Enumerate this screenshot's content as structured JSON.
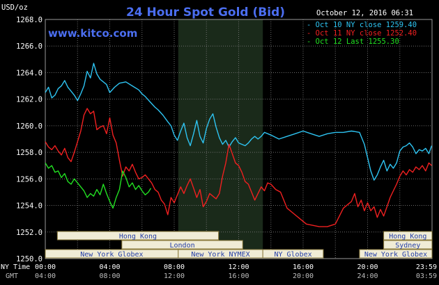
{
  "header": {
    "unit_label": "USD/oz",
    "title": "24 Hour Spot Gold (Bid)",
    "timestamp": "October 12, 2016 06:31",
    "site": "www.kitco.com"
  },
  "footer": {
    "ny_time_label": "NY Time",
    "gmt_label": "GMT"
  },
  "colors": {
    "background": "#000000",
    "grid": "#6e6e6e",
    "title": "#4b6ef0",
    "series_oct10": "#2ec4f2",
    "series_oct11": "#f02020",
    "series_oct12": "#22e022",
    "session_fill": "#f0ecd6",
    "session_border": "#8a7a3c",
    "highlight_band": "#1a2a1a"
  },
  "sessions": [
    {
      "label": "Hong Kong",
      "row": 1,
      "from": 0.75,
      "to": 10.75
    },
    {
      "label": "Hong Kong",
      "row": 1,
      "from": 21.0,
      "to": 24.0
    },
    {
      "label": "London",
      "row": 2,
      "from": 4.75,
      "to": 12.25
    },
    {
      "label": "Sydney",
      "row": 2,
      "from": 21.0,
      "to": 24.0
    },
    {
      "label": "New York Globex",
      "row": 3,
      "from": 0.0,
      "to": 8.25
    },
    {
      "label": "New York NYMEX",
      "row": 3,
      "from": 8.25,
      "to": 13.5
    },
    {
      "label": "NY Globex",
      "row": 3,
      "from": 13.5,
      "to": 17.25
    },
    {
      "label": "New York Globex",
      "row": 3,
      "from": 19.5,
      "to": 24.0
    }
  ],
  "chart_data": {
    "type": "line",
    "title": "24 Hour Spot Gold (Bid)",
    "ylabel": "USD/oz",
    "ylim": [
      1250.0,
      1268.0
    ],
    "xlim": [
      0,
      24
    ],
    "yticks": [
      "1268.0",
      "1266.0",
      "1264.0",
      "1262.0",
      "1260.0",
      "1258.0",
      "1256.0",
      "1254.0",
      "1252.0",
      "1250.0"
    ],
    "ny_ticks": [
      "00:00",
      "04:00",
      "08:00",
      "12:00",
      "16:00",
      "20:00",
      "23:59"
    ],
    "gmt_ticks": [
      "04:00",
      "08:00",
      "12:00",
      "16:00",
      "20:00",
      "24:00",
      "03:59"
    ],
    "highlight_range": [
      8.25,
      13.5
    ],
    "legend_position": "top-right",
    "series": [
      {
        "name": "Oct 10 NY close 1259.40",
        "color": "#2ec4f2",
        "x": [
          0,
          0.2,
          0.4,
          0.6,
          0.8,
          1.0,
          1.2,
          1.4,
          1.6,
          1.8,
          2.0,
          2.2,
          2.4,
          2.6,
          2.8,
          3.0,
          3.2,
          3.4,
          3.6,
          3.8,
          4.0,
          4.3,
          4.6,
          5.0,
          5.4,
          5.8,
          6.0,
          6.2,
          6.5,
          6.8,
          7.0,
          7.3,
          7.6,
          7.8,
          8.0,
          8.2,
          8.4,
          8.6,
          8.8,
          9.0,
          9.2,
          9.4,
          9.6,
          9.8,
          10.0,
          10.2,
          10.4,
          10.6,
          10.8,
          11.0,
          11.2,
          11.4,
          11.6,
          11.8,
          12.0,
          12.2,
          12.4,
          12.6,
          12.8,
          13.0,
          13.2,
          13.4,
          13.6,
          14.0,
          14.5,
          15.0,
          15.5,
          16.0,
          16.5,
          17.0,
          17.5,
          18.0,
          18.5,
          19.0,
          19.5,
          19.8,
          20.0,
          20.2,
          20.4,
          20.6,
          20.8,
          21.0,
          21.2,
          21.4,
          21.6,
          21.8,
          22.0,
          22.2,
          22.4,
          22.6,
          22.8,
          23.0,
          23.2,
          23.4,
          23.6,
          23.8,
          23.98
        ],
        "y": [
          1262.5,
          1262.9,
          1262.1,
          1262.3,
          1262.8,
          1263.0,
          1263.4,
          1262.9,
          1262.6,
          1262.3,
          1261.9,
          1262.4,
          1263.0,
          1264.1,
          1263.6,
          1264.7,
          1263.9,
          1263.5,
          1263.3,
          1263.1,
          1262.5,
          1262.9,
          1263.2,
          1263.3,
          1263.0,
          1262.7,
          1262.4,
          1262.2,
          1261.8,
          1261.4,
          1261.2,
          1260.8,
          1260.3,
          1260.0,
          1259.3,
          1258.9,
          1259.6,
          1260.2,
          1259.1,
          1258.5,
          1259.4,
          1260.4,
          1259.2,
          1258.7,
          1259.8,
          1260.5,
          1260.9,
          1259.9,
          1259.1,
          1258.6,
          1258.9,
          1258.4,
          1258.8,
          1259.1,
          1258.7,
          1258.6,
          1258.5,
          1258.7,
          1259.0,
          1259.2,
          1259.0,
          1259.2,
          1259.5,
          1259.3,
          1259.0,
          1259.2,
          1259.4,
          1259.6,
          1259.4,
          1259.2,
          1259.4,
          1259.5,
          1259.5,
          1259.6,
          1259.5,
          1258.6,
          1257.6,
          1256.6,
          1255.9,
          1256.3,
          1256.9,
          1257.4,
          1256.6,
          1257.1,
          1256.8,
          1257.2,
          1258.1,
          1258.4,
          1258.5,
          1258.7,
          1258.4,
          1257.9,
          1258.2,
          1258.1,
          1258.3,
          1257.9,
          1258.5
        ]
      },
      {
        "name": "Oct 11 NY close 1252.40",
        "color": "#f02020",
        "x": [
          0,
          0.2,
          0.4,
          0.6,
          0.8,
          1.0,
          1.2,
          1.4,
          1.6,
          1.8,
          2.0,
          2.2,
          2.4,
          2.6,
          2.8,
          3.0,
          3.2,
          3.4,
          3.6,
          3.8,
          4.0,
          4.2,
          4.4,
          4.6,
          4.8,
          5.0,
          5.2,
          5.4,
          5.6,
          5.8,
          6.0,
          6.2,
          6.4,
          6.6,
          6.8,
          7.0,
          7.2,
          7.4,
          7.6,
          7.8,
          8.0,
          8.2,
          8.4,
          8.6,
          8.8,
          9.0,
          9.2,
          9.4,
          9.6,
          9.8,
          10.0,
          10.2,
          10.4,
          10.6,
          10.8,
          11.0,
          11.2,
          11.4,
          11.6,
          11.8,
          12.0,
          12.2,
          12.4,
          12.6,
          12.8,
          13.0,
          13.2,
          13.4,
          13.6,
          13.8,
          14.0,
          14.3,
          14.6,
          15.0,
          15.4,
          15.8,
          16.2,
          16.6,
          17.0,
          17.5,
          18.0,
          18.5,
          19.0,
          19.2,
          19.4,
          19.6,
          19.8,
          20.0,
          20.2,
          20.4,
          20.6,
          20.8,
          21.0,
          21.2,
          21.4,
          21.6,
          21.8,
          22.0,
          22.2,
          22.4,
          22.6,
          22.8,
          23.0,
          23.2,
          23.4,
          23.6,
          23.8,
          23.98
        ],
        "y": [
          1258.8,
          1258.4,
          1258.2,
          1258.5,
          1258.1,
          1257.8,
          1258.3,
          1257.6,
          1257.3,
          1258.0,
          1258.8,
          1259.6,
          1260.8,
          1261.3,
          1260.9,
          1261.1,
          1259.7,
          1259.9,
          1260.0,
          1259.4,
          1260.6,
          1259.3,
          1258.7,
          1257.4,
          1256.2,
          1256.9,
          1256.6,
          1257.1,
          1256.5,
          1256.0,
          1256.1,
          1256.3,
          1256.0,
          1255.7,
          1255.2,
          1255.0,
          1254.4,
          1254.1,
          1253.3,
          1254.6,
          1254.2,
          1254.8,
          1255.4,
          1254.9,
          1255.5,
          1256.0,
          1255.3,
          1254.6,
          1255.2,
          1253.9,
          1254.3,
          1254.9,
          1254.7,
          1254.5,
          1254.9,
          1256.2,
          1257.2,
          1258.6,
          1257.9,
          1257.2,
          1257.0,
          1256.5,
          1255.8,
          1255.6,
          1255.0,
          1254.4,
          1254.9,
          1255.4,
          1255.1,
          1255.7,
          1255.6,
          1255.2,
          1255.0,
          1253.8,
          1253.4,
          1253.0,
          1252.6,
          1252.5,
          1252.4,
          1252.4,
          1252.6,
          1253.8,
          1254.3,
          1254.9,
          1253.9,
          1254.4,
          1253.6,
          1254.2,
          1253.6,
          1253.9,
          1253.1,
          1253.7,
          1253.2,
          1253.9,
          1254.6,
          1255.1,
          1255.6,
          1256.2,
          1256.6,
          1256.3,
          1256.7,
          1256.5,
          1256.9,
          1256.7,
          1257.0,
          1256.6,
          1257.2,
          1257.0
        ]
      },
      {
        "name": "Oct 12 Last 1255.30",
        "color": "#22e022",
        "x": [
          0,
          0.2,
          0.4,
          0.6,
          0.8,
          1.0,
          1.2,
          1.4,
          1.6,
          1.8,
          2.0,
          2.2,
          2.4,
          2.6,
          2.8,
          3.0,
          3.2,
          3.4,
          3.6,
          3.8,
          4.0,
          4.2,
          4.4,
          4.6,
          4.8,
          5.0,
          5.2,
          5.4,
          5.6,
          5.8,
          6.0,
          6.2,
          6.4,
          6.55
        ],
        "y": [
          1257.2,
          1256.8,
          1257.0,
          1256.5,
          1256.6,
          1256.1,
          1256.4,
          1255.8,
          1255.6,
          1256.0,
          1255.7,
          1255.4,
          1255.1,
          1254.6,
          1254.9,
          1254.7,
          1255.2,
          1254.8,
          1255.6,
          1254.9,
          1254.3,
          1253.8,
          1254.6,
          1255.2,
          1256.6,
          1256.1,
          1255.4,
          1255.7,
          1255.2,
          1255.5,
          1255.1,
          1254.8,
          1255.0,
          1255.3
        ]
      }
    ]
  }
}
